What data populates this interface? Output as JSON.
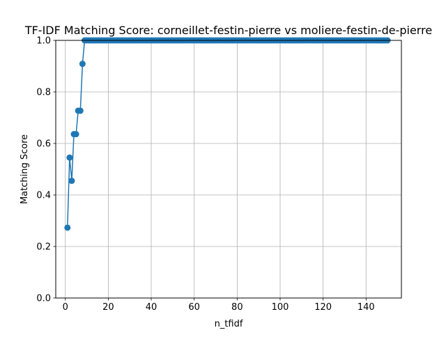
{
  "chart_data": {
    "type": "line",
    "title": "TF-IDF Matching Score: corneillet-festin-pierre vs moliere-festin-de-pierre",
    "xlabel": "n_tfidf",
    "ylabel": "Matching Score",
    "xlim": [
      -4.45,
      156.45
    ],
    "ylim": [
      0,
      1
    ],
    "xticks": [
      0,
      20,
      40,
      60,
      80,
      100,
      120,
      140
    ],
    "yticks": [
      0.0,
      0.2,
      0.4,
      0.6,
      0.8,
      1.0
    ],
    "xtick_labels": [
      "0",
      "20",
      "40",
      "60",
      "80",
      "100",
      "120",
      "140"
    ],
    "ytick_labels": [
      "0.0",
      "0.2",
      "0.4",
      "0.6",
      "0.8",
      "1.0"
    ],
    "grid": true,
    "series": [
      {
        "color": "#1f77b4",
        "marker": "circle",
        "x": [
          1,
          2,
          3,
          4,
          5,
          6,
          7,
          8,
          9,
          10,
          11,
          12,
          13,
          14,
          15,
          16,
          17,
          18,
          19,
          20,
          21,
          22,
          23,
          24,
          25,
          26,
          27,
          28,
          29,
          30,
          31,
          32,
          33,
          34,
          35,
          36,
          37,
          38,
          39,
          40,
          41,
          42,
          43,
          44,
          45,
          46,
          47,
          48,
          49,
          50,
          51,
          52,
          53,
          54,
          55,
          56,
          57,
          58,
          59,
          60,
          61,
          62,
          63,
          64,
          65,
          66,
          67,
          68,
          69,
          70,
          71,
          72,
          73,
          74,
          75,
          76,
          77,
          78,
          79,
          80,
          81,
          82,
          83,
          84,
          85,
          86,
          87,
          88,
          89,
          90,
          91,
          92,
          93,
          94,
          95,
          96,
          97,
          98,
          99,
          100,
          101,
          102,
          103,
          104,
          105,
          106,
          107,
          108,
          109,
          110,
          111,
          112,
          113,
          114,
          115,
          116,
          117,
          118,
          119,
          120,
          121,
          122,
          123,
          124,
          125,
          126,
          127,
          128,
          129,
          130,
          131,
          132,
          133,
          134,
          135,
          136,
          137,
          138,
          139,
          140,
          141,
          142,
          143,
          144,
          145,
          146,
          147,
          148,
          149,
          150
        ],
        "y": [
          0.273,
          0.545,
          0.455,
          0.636,
          0.636,
          0.727,
          0.727,
          0.909,
          1.0,
          1.0,
          1.0,
          1.0,
          1.0,
          1.0,
          1.0,
          1.0,
          1.0,
          1.0,
          1.0,
          1.0,
          1.0,
          1.0,
          1.0,
          1.0,
          1.0,
          1.0,
          1.0,
          1.0,
          1.0,
          1.0,
          1.0,
          1.0,
          1.0,
          1.0,
          1.0,
          1.0,
          1.0,
          1.0,
          1.0,
          1.0,
          1.0,
          1.0,
          1.0,
          1.0,
          1.0,
          1.0,
          1.0,
          1.0,
          1.0,
          1.0,
          1.0,
          1.0,
          1.0,
          1.0,
          1.0,
          1.0,
          1.0,
          1.0,
          1.0,
          1.0,
          1.0,
          1.0,
          1.0,
          1.0,
          1.0,
          1.0,
          1.0,
          1.0,
          1.0,
          1.0,
          1.0,
          1.0,
          1.0,
          1.0,
          1.0,
          1.0,
          1.0,
          1.0,
          1.0,
          1.0,
          1.0,
          1.0,
          1.0,
          1.0,
          1.0,
          1.0,
          1.0,
          1.0,
          1.0,
          1.0,
          1.0,
          1.0,
          1.0,
          1.0,
          1.0,
          1.0,
          1.0,
          1.0,
          1.0,
          1.0,
          1.0,
          1.0,
          1.0,
          1.0,
          1.0,
          1.0,
          1.0,
          1.0,
          1.0,
          1.0,
          1.0,
          1.0,
          1.0,
          1.0,
          1.0,
          1.0,
          1.0,
          1.0,
          1.0,
          1.0,
          1.0,
          1.0,
          1.0,
          1.0,
          1.0,
          1.0,
          1.0,
          1.0,
          1.0,
          1.0,
          1.0,
          1.0,
          1.0,
          1.0,
          1.0,
          1.0,
          1.0,
          1.0,
          1.0,
          1.0,
          1.0,
          1.0,
          1.0,
          1.0,
          1.0,
          1.0,
          1.0,
          1.0,
          1.0,
          1.0
        ]
      }
    ]
  }
}
